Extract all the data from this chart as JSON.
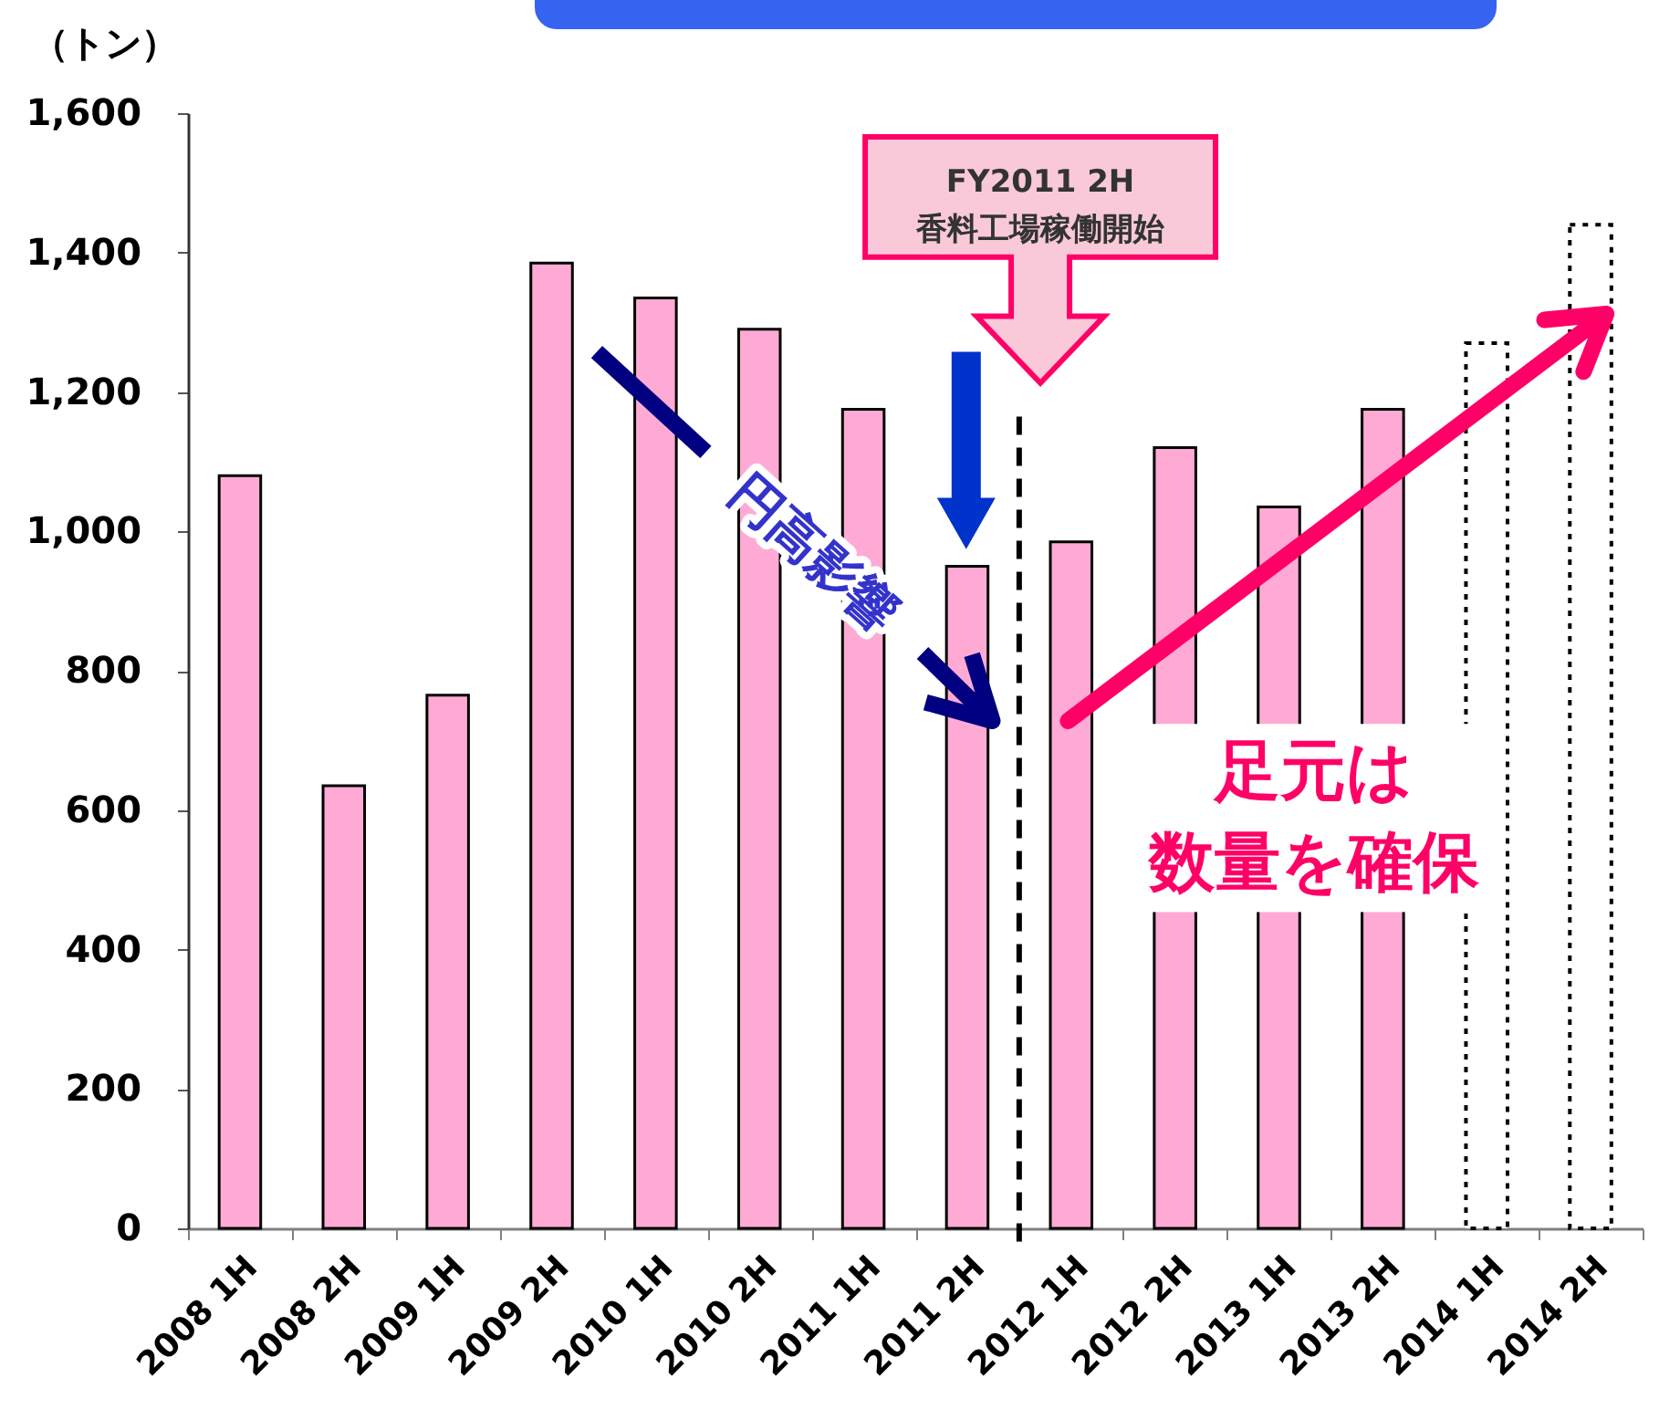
{
  "chart_data": {
    "type": "bar",
    "ylabel": "（トン）",
    "categories": [
      "2008 1H",
      "2008 2H",
      "2009 1H",
      "2009 2H",
      "2010 1H",
      "2010 2H",
      "2011 1H",
      "2011 2H",
      "2012 1H",
      "2012 2H",
      "2013 1H",
      "2013 2H",
      "2014 1H",
      "2014 2H"
    ],
    "series": [
      {
        "color": "#ffaad4",
        "values": [
          1080,
          635,
          765,
          1385,
          1335,
          1290,
          1175,
          950,
          985,
          1120,
          1035,
          1175,
          null,
          null
        ]
      },
      {
        "color": "#ffffff",
        "line_style": "dotted",
        "values": [
          null,
          null,
          null,
          null,
          null,
          null,
          null,
          null,
          null,
          null,
          null,
          null,
          1270,
          1440
        ]
      }
    ],
    "ylim": [
      0,
      1600
    ],
    "yticks": [
      0,
      200,
      400,
      600,
      800,
      {
        "value": 1000,
        "label": "1,000"
      },
      {
        "value": 1200,
        "label": "1,200"
      },
      {
        "value": 1400,
        "label": "1,400"
      },
      {
        "value": 1600,
        "label": "1,600"
      }
    ],
    "ref_lines": [
      {
        "axis": "x",
        "value": "2012 1H",
        "color": "#000000",
        "line_style": "dashed"
      }
    ],
    "annotations": [
      "FY2011 2H",
      "香料工場稼働開始",
      "円高影響",
      "足元は",
      "数量を確保"
    ]
  }
}
